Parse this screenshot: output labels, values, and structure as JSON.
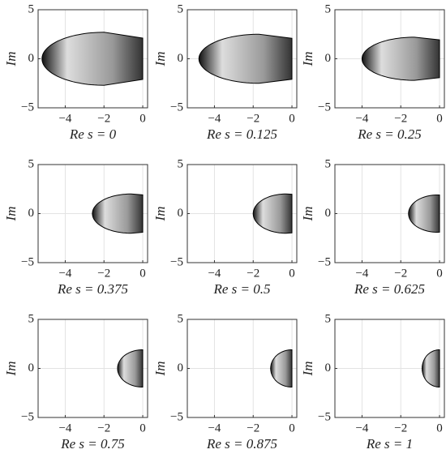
{
  "chart_data": [
    {
      "type": "region",
      "ylabel": "Im",
      "xlabel": "Re s = 0",
      "xlim": [
        -5.4,
        0.25
      ],
      "ylim": [
        -5,
        5
      ],
      "xticks": [
        {
          "value": -4,
          "label": "−4"
        },
        {
          "value": -2,
          "label": "−2"
        },
        0
      ],
      "yticks": [
        {
          "value": -5,
          "label": "−5"
        },
        0,
        5
      ],
      "grid": true,
      "region": {
        "xmin": -5.2,
        "xcenter": -2,
        "xmax": 0,
        "height": 2.7
      }
    },
    {
      "type": "region",
      "ylabel": "Im",
      "xlabel": "Re s = 0.125",
      "xlim": [
        -5.4,
        0.25
      ],
      "ylim": [
        -5,
        5
      ],
      "xticks": [
        {
          "value": -4,
          "label": "−4"
        },
        {
          "value": -2,
          "label": "−2"
        },
        0
      ],
      "yticks": [
        {
          "value": -5,
          "label": "−5"
        },
        0,
        5
      ],
      "grid": true,
      "region": {
        "xmin": -4.8,
        "xcenter": -1.7,
        "xmax": 0,
        "height": 2.5
      }
    },
    {
      "type": "region",
      "ylabel": "Im",
      "xlabel": "Re s = 0.25",
      "xlim": [
        -5.4,
        0.25
      ],
      "ylim": [
        -5,
        5
      ],
      "xticks": [
        {
          "value": -4,
          "label": "−4"
        },
        {
          "value": -2,
          "label": "−2"
        },
        0
      ],
      "yticks": [
        {
          "value": -5,
          "label": "−5"
        },
        0,
        5
      ],
      "grid": true,
      "region": {
        "xmin": -4.0,
        "xcenter": -1.3,
        "xmax": 0,
        "height": 2.2
      }
    },
    {
      "type": "region",
      "ylabel": "Im",
      "xlabel": "Re s = 0.375",
      "xlim": [
        -5.4,
        0.25
      ],
      "ylim": [
        -5,
        5
      ],
      "xticks": [
        {
          "value": -4,
          "label": "−4"
        },
        {
          "value": -2,
          "label": "−2"
        },
        0
      ],
      "yticks": [
        {
          "value": -5,
          "label": "−5"
        },
        0,
        5
      ],
      "grid": true,
      "region": {
        "xmin": -2.6,
        "xcenter": -0.6,
        "xmax": 0,
        "height": 2.0
      }
    },
    {
      "type": "region",
      "ylabel": "Im",
      "xlabel": "Re s = 0.5",
      "xlim": [
        -5.4,
        0.25
      ],
      "ylim": [
        -5,
        5
      ],
      "xticks": [
        {
          "value": -4,
          "label": "−4"
        },
        {
          "value": -2,
          "label": "−2"
        },
        0
      ],
      "yticks": [
        {
          "value": -5,
          "label": "−5"
        },
        0,
        5
      ],
      "grid": true,
      "region": {
        "xmin": -2.0,
        "xcenter": -0.3,
        "xmax": 0,
        "height": 2.0
      }
    },
    {
      "type": "region",
      "ylabel": "Im",
      "xlabel": "Re s = 0.625",
      "xlim": [
        -5.4,
        0.25
      ],
      "ylim": [
        -5,
        5
      ],
      "xticks": [
        {
          "value": -4,
          "label": "−4"
        },
        {
          "value": -2,
          "label": "−2"
        },
        0
      ],
      "yticks": [
        {
          "value": -5,
          "label": "−5"
        },
        0,
        5
      ],
      "grid": true,
      "region": {
        "xmin": -1.6,
        "xcenter": -0.1,
        "xmax": 0,
        "height": 1.9
      }
    },
    {
      "type": "region",
      "ylabel": "Im",
      "xlabel": "Re s = 0.75",
      "xlim": [
        -5.4,
        0.25
      ],
      "ylim": [
        -5,
        5
      ],
      "xticks": [
        {
          "value": -4,
          "label": "−4"
        },
        {
          "value": -2,
          "label": "−2"
        },
        0
      ],
      "yticks": [
        {
          "value": -5,
          "label": "−5"
        },
        0,
        5
      ],
      "grid": true,
      "region": {
        "xmin": -1.3,
        "xcenter": 0,
        "xmax": 0,
        "height": 1.9
      }
    },
    {
      "type": "region",
      "ylabel": "Im",
      "xlabel": "Re s = 0.875",
      "xlim": [
        -5.4,
        0.25
      ],
      "ylim": [
        -5,
        5
      ],
      "xticks": [
        {
          "value": -4,
          "label": "−4"
        },
        {
          "value": -2,
          "label": "−2"
        },
        0
      ],
      "yticks": [
        {
          "value": -5,
          "label": "−5"
        },
        0,
        5
      ],
      "grid": true,
      "region": {
        "xmin": -1.1,
        "xcenter": 0,
        "xmax": 0,
        "height": 1.9
      }
    },
    {
      "type": "region",
      "ylabel": "Im",
      "xlabel": "Re s = 1",
      "xlim": [
        -5.4,
        0.25
      ],
      "ylim": [
        -5,
        5
      ],
      "xticks": [
        {
          "value": -4,
          "label": "−4"
        },
        {
          "value": -2,
          "label": "−2"
        },
        0
      ],
      "yticks": [
        {
          "value": -5,
          "label": "−5"
        },
        0,
        5
      ],
      "grid": true,
      "region": {
        "xmin": -0.9,
        "xcenter": 0,
        "xmax": 0,
        "height": 1.9
      }
    }
  ]
}
